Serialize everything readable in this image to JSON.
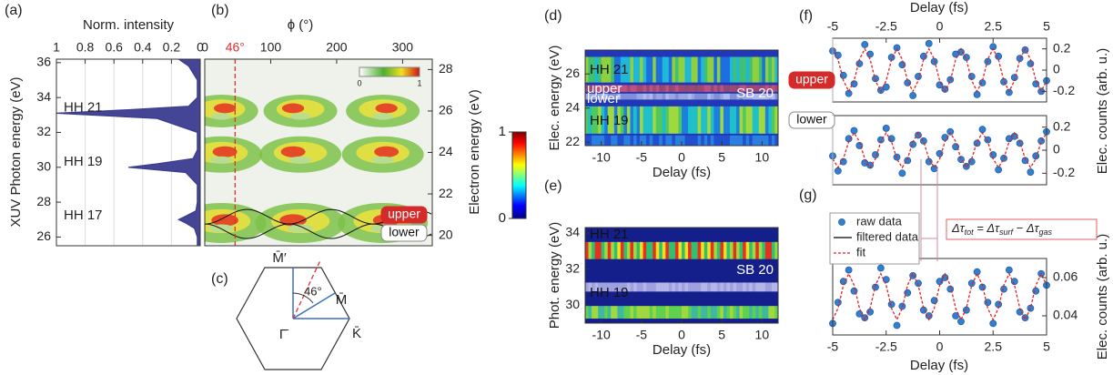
{
  "chart_data": [
    {
      "type": "area",
      "label": "(a)",
      "xlabel": "Norm. intensity",
      "ylabel": "XUV Photon energy (eV)",
      "color": "#3b3b8f",
      "x": [
        25.5,
        26,
        26.5,
        26.8,
        27,
        27.2,
        27.5,
        28,
        29,
        29.7,
        30,
        30.2,
        30.5,
        31,
        32,
        32.8,
        33.1,
        33.3,
        33.5,
        34,
        35,
        35.8,
        36.2
      ],
      "values": [
        0.02,
        0.02,
        0.04,
        0.1,
        0.15,
        0.1,
        0.03,
        0.02,
        0.02,
        0.1,
        0.5,
        0.3,
        0.05,
        0.02,
        0.02,
        0.3,
        1,
        0.5,
        0.08,
        0.02,
        0.02,
        0.08,
        0.15
      ],
      "xlim": [
        1,
        0
      ],
      "ylim": [
        25.5,
        36.2
      ],
      "xticks": [
        1,
        0.8,
        0.6,
        0.4,
        0.2,
        0
      ],
      "yticks": [
        26,
        28,
        30,
        32,
        34,
        36
      ],
      "grid": true,
      "annotations": [
        "HH 21",
        "HH 19",
        "HH 17"
      ]
    },
    {
      "type": "heatmap",
      "label": "(b)",
      "xlabel": "ϕ (°)",
      "ylabel": "Electron energy (eV)",
      "xlim": [
        0,
        345
      ],
      "ylim": [
        19.5,
        28.5
      ],
      "xticks": [
        0,
        100,
        200,
        300
      ],
      "yticks": [
        20,
        22,
        24,
        26,
        28
      ],
      "cut": {
        "value": 46,
        "label": "46°"
      },
      "colorbar_ticks": [
        0,
        1
      ],
      "annotations": [
        "upper",
        "lower"
      ]
    },
    {
      "type": "colorbar",
      "ylim": [
        0,
        1
      ],
      "yticks": [
        0,
        1
      ]
    },
    {
      "type": "heatmap",
      "label": "(d)",
      "xlabel": "Delay (fs)",
      "ylabel": "Elec. energy (eV)",
      "xlim": [
        -12,
        12
      ],
      "ylim": [
        21.8,
        27.4
      ],
      "xticks": [
        -10,
        -5,
        0,
        5,
        10
      ],
      "yticks": [
        22,
        24,
        26
      ],
      "annotations": [
        "HH 21",
        "upper",
        "lower",
        "SB 20",
        "HH 19"
      ]
    },
    {
      "type": "heatmap",
      "label": "(e)",
      "xlabel": "Delay (fs)",
      "ylabel": "Phot. energy (eV)",
      "xlim": [
        -12,
        12
      ],
      "ylim": [
        29,
        34.3
      ],
      "xticks": [
        -10,
        -5,
        0,
        5,
        10
      ],
      "yticks": [
        30,
        32,
        34
      ],
      "annotations": [
        "HH 21",
        "SB 20",
        "HH 19"
      ]
    },
    {
      "type": "scatter",
      "label": "(f)",
      "xlabel": "Delay (fs)",
      "ylabel": "Elec. counts (arb. u.)",
      "tag": "upper",
      "xlim": [
        -5,
        5
      ],
      "ylim": [
        -0.3,
        0.3
      ],
      "xticks": [
        -5,
        -2.5,
        0,
        2.5,
        5
      ],
      "yticks": [
        -0.2,
        0,
        0.2
      ],
      "x": [
        -5,
        -4.75,
        -4.5,
        -4.25,
        -4,
        -3.75,
        -3.5,
        -3.25,
        -3,
        -2.75,
        -2.5,
        -2.25,
        -2,
        -1.75,
        -1.5,
        -1.25,
        -1,
        -0.75,
        -0.5,
        -0.25,
        0,
        0.25,
        0.5,
        0.75,
        1,
        1.25,
        1.5,
        1.75,
        2,
        2.25,
        2.5,
        2.75,
        3,
        3.25,
        3.5,
        3.75,
        4,
        4.25,
        4.5,
        4.75,
        5
      ],
      "series": [
        {
          "color": "#2f7fd4",
          "style": "markers",
          "values": [
            0.18,
            0.14,
            -0.05,
            -0.22,
            -0.13,
            0.06,
            0.24,
            0.15,
            -0.08,
            -0.19,
            -0.16,
            0.12,
            0.21,
            0.05,
            -0.12,
            -0.24,
            -0.06,
            0.13,
            0.25,
            0.08,
            -0.14,
            -0.18,
            -0.09,
            0.15,
            0.17,
            0.12,
            -0.06,
            -0.23,
            -0.12,
            0.08,
            0.22,
            0.13,
            -0.11,
            -0.21,
            -0.07,
            0.11,
            0.19,
            0.06,
            -0.13,
            -0.2,
            -0.1
          ]
        },
        {
          "color": "#e02020",
          "style": "dashed",
          "values": [
            0.2,
            0.1,
            -0.1,
            -0.2,
            -0.1,
            0.1,
            0.2,
            0.1,
            -0.1,
            -0.2,
            -0.1,
            0.1,
            0.2,
            0.1,
            -0.1,
            -0.2,
            -0.1,
            0.1,
            0.2,
            0.1,
            -0.1,
            -0.2,
            -0.1,
            0.1,
            0.2,
            0.1,
            -0.1,
            -0.2,
            -0.1,
            0.1,
            0.2,
            0.1,
            -0.1,
            -0.2,
            -0.1,
            0.1,
            0.2,
            0.1,
            -0.1,
            -0.2,
            -0.1
          ]
        }
      ]
    },
    {
      "type": "scatter",
      "tag": "lower",
      "xlim": [
        -5,
        5
      ],
      "ylim": [
        -0.3,
        0.3
      ],
      "xticks": [
        -5,
        -2.5,
        0,
        2.5,
        5
      ],
      "yticks": [
        -0.2,
        0,
        0.2
      ],
      "x": [
        -5,
        -4.75,
        -4.5,
        -4.25,
        -4,
        -3.75,
        -3.5,
        -3.25,
        -3,
        -2.75,
        -2.5,
        -2.25,
        -2,
        -1.75,
        -1.5,
        -1.25,
        -1,
        -0.75,
        -0.5,
        -0.25,
        0,
        0.25,
        0.5,
        0.75,
        1,
        1.25,
        1.5,
        1.75,
        2,
        2.25,
        2.5,
        2.75,
        3,
        3.25,
        3.5,
        3.75,
        4,
        4.25,
        4.5,
        4.75,
        5
      ],
      "series": [
        {
          "color": "#2f7fd4",
          "style": "markers",
          "values": [
            -0.05,
            -0.18,
            -0.1,
            0.1,
            0.17,
            0.04,
            -0.11,
            -0.13,
            -0.04,
            0.09,
            0.19,
            0.1,
            -0.06,
            -0.2,
            -0.09,
            0.05,
            0.13,
            0.08,
            -0.1,
            -0.16,
            -0.03,
            0.11,
            0.16,
            0.03,
            -0.08,
            -0.14,
            -0.1,
            0.06,
            0.18,
            0.09,
            -0.04,
            -0.17,
            -0.07,
            0.1,
            0.12,
            0.06,
            -0.09,
            -0.19,
            -0.05,
            0.08,
            0.16
          ]
        },
        {
          "color": "#e02020",
          "style": "dashed",
          "values": [
            -0.075,
            -0.15,
            -0.075,
            0.075,
            0.15,
            0.075,
            -0.075,
            -0.15,
            -0.075,
            0.075,
            0.15,
            0.075,
            -0.075,
            -0.15,
            -0.075,
            0.075,
            0.15,
            0.075,
            -0.075,
            -0.15,
            -0.075,
            0.075,
            0.15,
            0.075,
            -0.075,
            -0.15,
            -0.075,
            0.075,
            0.15,
            0.075,
            -0.075,
            -0.15,
            -0.075,
            0.075,
            0.15,
            0.075,
            -0.075,
            -0.15,
            -0.075,
            0.075,
            0.15
          ]
        }
      ]
    },
    {
      "type": "scatter",
      "label": "(g)",
      "xlabel": "Delay (fs)",
      "ylabel": "Elec. counts (arb. u.)",
      "xlim": [
        -5,
        5
      ],
      "ylim": [
        0.03,
        0.07
      ],
      "xticks": [
        -5,
        -2.5,
        0,
        2.5,
        5
      ],
      "yticks": [
        0.04,
        0.06
      ],
      "formula": [
        "Δτ",
        "tot",
        " = Δτ",
        "surf",
        " − Δτ",
        "gas"
      ],
      "x": [
        -5,
        -4.75,
        -4.5,
        -4.25,
        -4,
        -3.75,
        -3.5,
        -3.25,
        -3,
        -2.75,
        -2.5,
        -2.25,
        -2,
        -1.75,
        -1.5,
        -1.25,
        -1,
        -0.75,
        -0.5,
        -0.25,
        0,
        0.25,
        0.5,
        0.75,
        1,
        1.25,
        1.5,
        1.75,
        2,
        2.25,
        2.5,
        2.75,
        3,
        3.25,
        3.5,
        3.75,
        4,
        4.25,
        4.5,
        4.75,
        5
      ],
      "series": [
        {
          "name": "raw data",
          "color": "#2f7fd4",
          "style": "markers",
          "values": [
            0.036,
            0.047,
            0.058,
            0.064,
            0.053,
            0.041,
            0.039,
            0.042,
            0.055,
            0.065,
            0.059,
            0.046,
            0.035,
            0.045,
            0.052,
            0.061,
            0.057,
            0.043,
            0.04,
            0.048,
            0.058,
            0.06,
            0.054,
            0.04,
            0.037,
            0.043,
            0.057,
            0.063,
            0.055,
            0.047,
            0.036,
            0.046,
            0.054,
            0.064,
            0.058,
            0.042,
            0.039,
            0.044,
            0.053,
            0.062,
            0.056
          ]
        },
        {
          "name": "filtered data",
          "color": "#000000",
          "style": "solid"
        },
        {
          "name": "fit",
          "color": "#e02020",
          "style": "dashed",
          "values": [
            0.038,
            0.044,
            0.056,
            0.062,
            0.056,
            0.044,
            0.038,
            0.044,
            0.056,
            0.062,
            0.056,
            0.044,
            0.038,
            0.044,
            0.056,
            0.062,
            0.056,
            0.044,
            0.038,
            0.044,
            0.056,
            0.062,
            0.056,
            0.044,
            0.038,
            0.044,
            0.056,
            0.062,
            0.056,
            0.044,
            0.038,
            0.044,
            0.056,
            0.062,
            0.056,
            0.044,
            0.038,
            0.044,
            0.056,
            0.062,
            0.056
          ]
        }
      ]
    }
  ],
  "diagram": {
    "label": "(c)",
    "points": [
      "M̄′",
      "M̄",
      "Γ̄",
      "K̄"
    ],
    "angle": "46°"
  }
}
